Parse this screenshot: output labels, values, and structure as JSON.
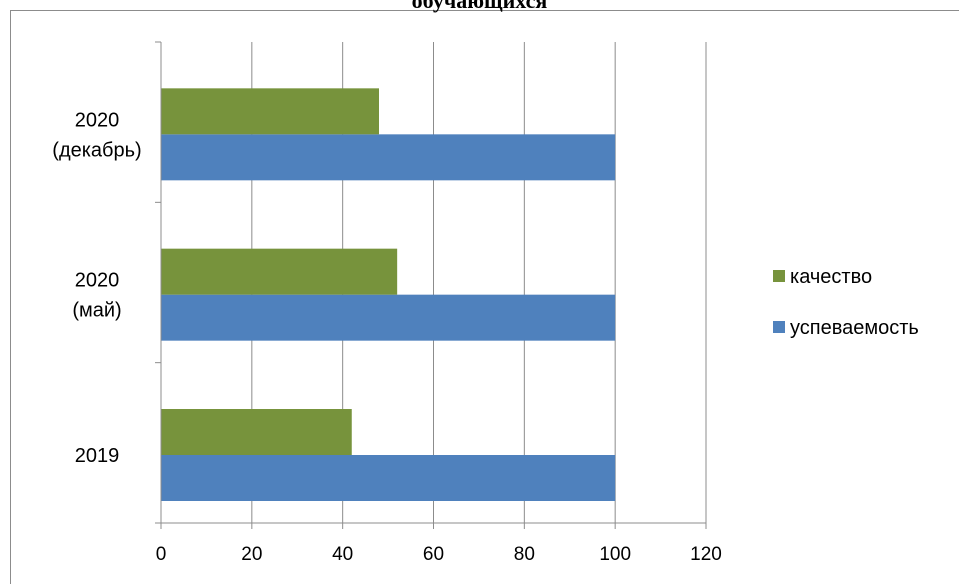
{
  "chart_data": {
    "type": "bar",
    "orientation": "horizontal",
    "title": "обучающихся",
    "categories": [
      "2019",
      "2020 (май)",
      "2020 (декабрь)"
    ],
    "category_lines": [
      [
        "2019"
      ],
      [
        "2020",
        "(май)"
      ],
      [
        "2020",
        "(декабрь)"
      ]
    ],
    "series": [
      {
        "name": "успеваемость",
        "values": [
          100,
          100,
          100
        ],
        "color": "#4f81bd"
      },
      {
        "name": "качество",
        "values": [
          42,
          52,
          48
        ],
        "color": "#77933c"
      }
    ],
    "xlim": [
      0,
      120
    ],
    "xticks": [
      "0",
      "20",
      "40",
      "60",
      "80",
      "100",
      "120"
    ],
    "grid": "vertical",
    "legend": {
      "placement": "right",
      "order": [
        "качество",
        "успеваемость"
      ]
    }
  }
}
